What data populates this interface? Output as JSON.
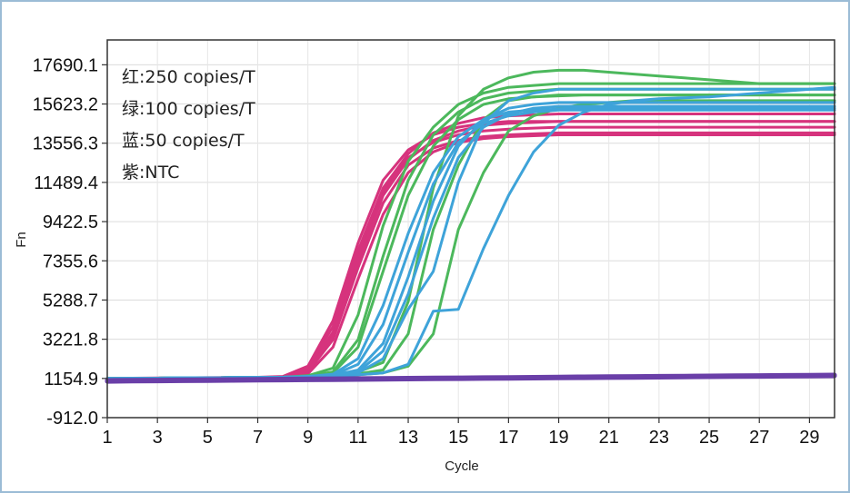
{
  "chart_data": {
    "type": "line",
    "xlabel": "Cycle",
    "ylabel": "Fn",
    "xlim": [
      1,
      30
    ],
    "ylim": [
      -912.0,
      19000
    ],
    "x_ticks": [
      1,
      3,
      5,
      7,
      9,
      11,
      13,
      15,
      17,
      19,
      21,
      23,
      25,
      27,
      29
    ],
    "y_ticks": [
      -912.0,
      1154.9,
      3221.8,
      5288.7,
      7355.6,
      9422.5,
      11489.4,
      13556.3,
      15623.2,
      17690.1
    ],
    "y_tick_labels": [
      "-912.0",
      "1154.9",
      "3221.8",
      "5288.7",
      "7355.6",
      "9422.5",
      "11489.4",
      "13556.3",
      "15623.2",
      "17690.1"
    ],
    "grid": true,
    "legend_placement": "top-left",
    "legend": [
      "红:250 copies/T",
      "绿:100 copies/T",
      "蓝:50 copies/T",
      "紫:NTC"
    ],
    "colors": {
      "red": "#d6337d",
      "green": "#4cb85c",
      "blue": "#3ea3d9",
      "purple": "#6a3fa8"
    },
    "x": [
      1,
      2,
      3,
      4,
      5,
      6,
      7,
      8,
      9,
      10,
      11,
      12,
      13,
      14,
      15,
      16,
      17,
      18,
      19,
      20,
      21,
      22,
      23,
      24,
      25,
      26,
      27,
      28,
      29,
      30
    ],
    "series": [
      {
        "color": "red",
        "values": [
          1150,
          1160,
          1170,
          1180,
          1190,
          1200,
          1210,
          1230,
          1600,
          3600,
          7600,
          11000,
          12800,
          13600,
          14000,
          14200,
          14300,
          14350,
          14400,
          14400,
          14400,
          14400,
          14400,
          14400,
          14400,
          14400,
          14400,
          14400,
          14400,
          14400
        ]
      },
      {
        "color": "red",
        "values": [
          1160,
          1170,
          1180,
          1190,
          1200,
          1210,
          1220,
          1260,
          1800,
          4200,
          8300,
          11600,
          13200,
          14000,
          14400,
          14600,
          14700,
          14700,
          14700,
          14700,
          14700,
          14700,
          14700,
          14700,
          14700,
          14700,
          14700,
          14700,
          14700,
          14700
        ]
      },
      {
        "color": "red",
        "values": [
          1140,
          1150,
          1160,
          1170,
          1180,
          1190,
          1200,
          1220,
          1500,
          3200,
          7000,
          10400,
          12400,
          13300,
          13700,
          13900,
          14000,
          14050,
          14100,
          14100,
          14100,
          14100,
          14100,
          14100,
          14100,
          14100,
          14100,
          14100,
          14100,
          14100
        ]
      },
      {
        "color": "red",
        "values": [
          1150,
          1160,
          1170,
          1180,
          1190,
          1200,
          1210,
          1240,
          1700,
          3900,
          7900,
          11200,
          13000,
          14100,
          14600,
          14900,
          15000,
          15050,
          15100,
          15100,
          15100,
          15100,
          15100,
          15100,
          15100,
          15100,
          15100,
          15100,
          15100,
          15100
        ]
      },
      {
        "color": "red",
        "values": [
          1150,
          1160,
          1170,
          1180,
          1190,
          1200,
          1210,
          1230,
          1400,
          2800,
          6400,
          9800,
          12000,
          13100,
          13600,
          13800,
          13900,
          13950,
          14000,
          14000,
          14000,
          14000,
          14000,
          14000,
          14000,
          14000,
          14000,
          14000,
          14000,
          14000
        ]
      },
      {
        "color": "red",
        "values": [
          1150,
          1160,
          1170,
          1180,
          1190,
          1200,
          1210,
          1230,
          1550,
          3400,
          7300,
          10800,
          12700,
          13700,
          14200,
          14500,
          14600,
          14650,
          14700,
          14700,
          14700,
          14700,
          14700,
          14700,
          14700,
          14700,
          14700,
          14700,
          14700,
          14700
        ]
      },
      {
        "color": "green",
        "values": [
          1150,
          1160,
          1170,
          1180,
          1190,
          1200,
          1210,
          1220,
          1300,
          1700,
          4500,
          9200,
          12600,
          14400,
          15600,
          16200,
          16500,
          16600,
          16700,
          16700,
          16700,
          16700,
          16700,
          16700,
          16700,
          16700,
          16700,
          16700,
          16700,
          16700
        ]
      },
      {
        "color": "green",
        "values": [
          1150,
          1160,
          1170,
          1180,
          1190,
          1200,
          1210,
          1220,
          1280,
          1500,
          3200,
          7600,
          11600,
          14000,
          15200,
          15900,
          16200,
          16300,
          16400,
          16400,
          16400,
          16400,
          16400,
          16400,
          16400,
          16400,
          16400,
          16400,
          16400,
          16400
        ]
      },
      {
        "color": "green",
        "values": [
          1150,
          1160,
          1170,
          1180,
          1190,
          1200,
          1210,
          1220,
          1260,
          1350,
          1500,
          2000,
          5200,
          11200,
          15000,
          16400,
          17000,
          17300,
          17400,
          17400,
          17300,
          17200,
          17100,
          17000,
          16900,
          16800,
          16700,
          16700,
          16700,
          16700
        ]
      },
      {
        "color": "green",
        "values": [
          1150,
          1160,
          1170,
          1180,
          1190,
          1200,
          1210,
          1220,
          1250,
          1300,
          1400,
          1600,
          3500,
          9000,
          12400,
          14800,
          15800,
          16000,
          16100,
          16100,
          16100,
          16100,
          16100,
          16100,
          16100,
          16100,
          16100,
          16100,
          16100,
          16100
        ]
      },
      {
        "color": "green",
        "values": [
          1150,
          1160,
          1170,
          1180,
          1190,
          1200,
          1210,
          1220,
          1250,
          1300,
          1350,
          1450,
          1800,
          3500,
          9000,
          12000,
          14200,
          15000,
          15400,
          15600,
          15700,
          15800,
          15800,
          15800,
          15800,
          15800,
          15800,
          15800,
          15800,
          15800
        ]
      },
      {
        "color": "green",
        "values": [
          1150,
          1160,
          1170,
          1180,
          1190,
          1200,
          1210,
          1220,
          1270,
          1450,
          2800,
          6800,
          10800,
          13400,
          14800,
          15600,
          15900,
          16000,
          16050,
          16100,
          16100,
          16100,
          16100,
          16100,
          16100,
          16100,
          16100,
          16100,
          16100,
          16100
        ]
      },
      {
        "color": "blue",
        "values": [
          1150,
          1160,
          1170,
          1180,
          1190,
          1200,
          1210,
          1220,
          1250,
          1320,
          1600,
          3000,
          6500,
          10500,
          13400,
          14800,
          15400,
          15600,
          15700,
          15700,
          15700,
          15700,
          15700,
          15700,
          15700,
          15700,
          15700,
          15700,
          15700,
          15700
        ]
      },
      {
        "color": "blue",
        "values": [
          1150,
          1160,
          1170,
          1180,
          1190,
          1200,
          1210,
          1220,
          1250,
          1300,
          1450,
          2200,
          4800,
          6800,
          11500,
          14600,
          15800,
          16200,
          16400,
          16400,
          16400,
          16400,
          16400,
          16400,
          16400,
          16400,
          16400,
          16400,
          16400,
          16400
        ]
      },
      {
        "color": "blue",
        "values": [
          1150,
          1160,
          1170,
          1180,
          1190,
          1200,
          1210,
          1220,
          1240,
          1280,
          1350,
          1450,
          1900,
          4700,
          4800,
          8000,
          10800,
          13100,
          14500,
          15200,
          15600,
          15800,
          15900,
          15950,
          16000,
          16100,
          16200,
          16300,
          16400,
          16500
        ]
      },
      {
        "color": "blue",
        "values": [
          1150,
          1160,
          1170,
          1180,
          1190,
          1200,
          1210,
          1220,
          1250,
          1340,
          1900,
          4000,
          7800,
          11400,
          13600,
          14600,
          15000,
          15200,
          15300,
          15300,
          15300,
          15300,
          15300,
          15300,
          15300,
          15300,
          15300,
          15300,
          15300,
          15300
        ]
      },
      {
        "color": "blue",
        "values": [
          1150,
          1160,
          1170,
          1180,
          1190,
          1200,
          1210,
          1220,
          1250,
          1310,
          1500,
          2600,
          5600,
          9600,
          12800,
          14400,
          15100,
          15400,
          15500,
          15500,
          15500,
          15500,
          15500,
          15500,
          15500,
          15500,
          15500,
          15500,
          15500,
          15500
        ]
      },
      {
        "color": "blue",
        "values": [
          1150,
          1160,
          1170,
          1180,
          1190,
          1200,
          1210,
          1220,
          1260,
          1380,
          2200,
          5000,
          8800,
          12000,
          13900,
          14800,
          15200,
          15300,
          15350,
          15400,
          15400,
          15400,
          15400,
          15400,
          15400,
          15400,
          15400,
          15400,
          15400,
          15400
        ]
      },
      {
        "color": "purple",
        "values": [
          1000,
          1010,
          1020,
          1030,
          1040,
          1050,
          1060,
          1070,
          1080,
          1090,
          1100,
          1110,
          1120,
          1130,
          1140,
          1150,
          1160,
          1170,
          1180,
          1190,
          1200,
          1210,
          1220,
          1230,
          1240,
          1250,
          1260,
          1270,
          1280,
          1290
        ]
      },
      {
        "color": "purple",
        "values": [
          1050,
          1060,
          1070,
          1080,
          1090,
          1100,
          1110,
          1120,
          1130,
          1140,
          1150,
          1160,
          1170,
          1180,
          1190,
          1200,
          1210,
          1220,
          1230,
          1240,
          1250,
          1260,
          1270,
          1280,
          1290,
          1300,
          1310,
          1320,
          1330,
          1340
        ]
      }
    ]
  }
}
